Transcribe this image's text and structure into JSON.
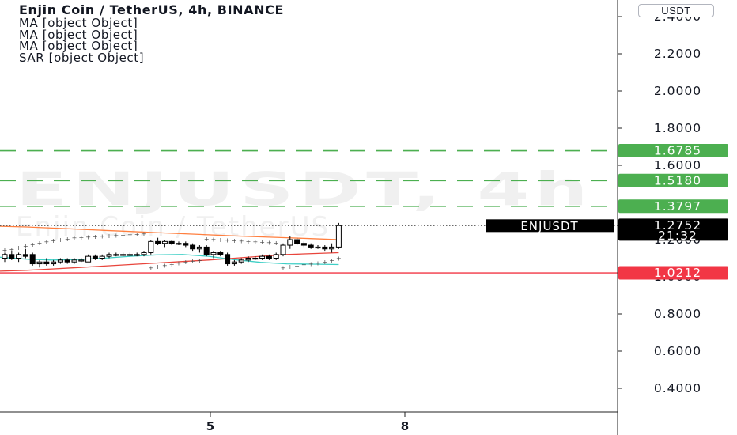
{
  "header": {
    "title": "Enjin Coin / TetherUS, 4h, BINANCE",
    "indicators": [
      "MA [object Object]",
      "MA [object Object]",
      "MA [object Object]",
      "SAR [object Object]"
    ],
    "currency": "USDT"
  },
  "watermark": {
    "symbol": "ENJUSDT, 4h",
    "description": "Enjin Coin / TetherUS"
  },
  "colors": {
    "up_candle": "#ffffff",
    "down_candle": "#000000",
    "ma_orange": "#ff7f3f",
    "ma_teal": "#3fcfc6",
    "ma_red": "#e8453c",
    "sar": "#444444",
    "green_line": "#4caf50",
    "red_line": "#f23645",
    "price_tag": "#000000"
  },
  "chart_data": {
    "type": "candlestick",
    "symbol": "ENJUSDT",
    "timeframe": "4h",
    "x_tick_labels": [
      "5",
      "8"
    ],
    "y_tick_labels": [
      "2.4000",
      "2.2000",
      "2.0000",
      "1.8000",
      "1.6000",
      "1.2000",
      "1.0000",
      "0.8000",
      "0.6000",
      "0.4000"
    ],
    "y_axis_values": [
      2.4,
      2.2,
      2.0,
      1.8,
      1.6,
      1.2,
      1.0,
      0.8,
      0.6,
      0.4
    ],
    "ylim": [
      0.3,
      2.45
    ],
    "grid": false,
    "horizontal_lines": [
      {
        "value": 1.6785,
        "label": "1.6785",
        "style": "dashed",
        "color": "#4caf50"
      },
      {
        "value": 1.518,
        "label": "1.5180",
        "style": "dashed",
        "color": "#4caf50"
      },
      {
        "value": 1.3797,
        "label": "1.3797",
        "style": "dashed",
        "color": "#4caf50"
      },
      {
        "value": 1.0212,
        "label": "1.0212",
        "style": "solid",
        "color": "#f23645"
      }
    ],
    "last_price": {
      "value": 1.2752,
      "label": "1.2752",
      "countdown": "21:32",
      "symbol": "ENJUSDT"
    },
    "candles": [
      {
        "o": 1.1,
        "h": 1.13,
        "l": 1.08,
        "c": 1.12
      },
      {
        "o": 1.12,
        "h": 1.14,
        "l": 1.09,
        "c": 1.1
      },
      {
        "o": 1.1,
        "h": 1.13,
        "l": 1.08,
        "c": 1.12
      },
      {
        "o": 1.12,
        "h": 1.15,
        "l": 1.1,
        "c": 1.11
      },
      {
        "o": 1.12,
        "h": 1.13,
        "l": 1.06,
        "c": 1.07
      },
      {
        "o": 1.07,
        "h": 1.09,
        "l": 1.05,
        "c": 1.08
      },
      {
        "o": 1.08,
        "h": 1.1,
        "l": 1.06,
        "c": 1.07
      },
      {
        "o": 1.07,
        "h": 1.09,
        "l": 1.06,
        "c": 1.08
      },
      {
        "o": 1.08,
        "h": 1.1,
        "l": 1.07,
        "c": 1.09
      },
      {
        "o": 1.09,
        "h": 1.1,
        "l": 1.07,
        "c": 1.08
      },
      {
        "o": 1.08,
        "h": 1.1,
        "l": 1.07,
        "c": 1.09
      },
      {
        "o": 1.09,
        "h": 1.1,
        "l": 1.08,
        "c": 1.09
      },
      {
        "o": 1.08,
        "h": 1.12,
        "l": 1.08,
        "c": 1.11
      },
      {
        "o": 1.11,
        "h": 1.12,
        "l": 1.09,
        "c": 1.1
      },
      {
        "o": 1.1,
        "h": 1.12,
        "l": 1.09,
        "c": 1.11
      },
      {
        "o": 1.11,
        "h": 1.13,
        "l": 1.1,
        "c": 1.12
      },
      {
        "o": 1.12,
        "h": 1.13,
        "l": 1.11,
        "c": 1.12
      },
      {
        "o": 1.12,
        "h": 1.13,
        "l": 1.11,
        "c": 1.12
      },
      {
        "o": 1.12,
        "h": 1.13,
        "l": 1.11,
        "c": 1.12
      },
      {
        "o": 1.12,
        "h": 1.13,
        "l": 1.11,
        "c": 1.12
      },
      {
        "o": 1.12,
        "h": 1.14,
        "l": 1.11,
        "c": 1.13
      },
      {
        "o": 1.13,
        "h": 1.2,
        "l": 1.12,
        "c": 1.19
      },
      {
        "o": 1.19,
        "h": 1.21,
        "l": 1.17,
        "c": 1.18
      },
      {
        "o": 1.18,
        "h": 1.2,
        "l": 1.16,
        "c": 1.19
      },
      {
        "o": 1.19,
        "h": 1.2,
        "l": 1.17,
        "c": 1.18
      },
      {
        "o": 1.18,
        "h": 1.19,
        "l": 1.17,
        "c": 1.18
      },
      {
        "o": 1.18,
        "h": 1.19,
        "l": 1.16,
        "c": 1.17
      },
      {
        "o": 1.17,
        "h": 1.18,
        "l": 1.14,
        "c": 1.15
      },
      {
        "o": 1.15,
        "h": 1.17,
        "l": 1.13,
        "c": 1.16
      },
      {
        "o": 1.16,
        "h": 1.17,
        "l": 1.11,
        "c": 1.12
      },
      {
        "o": 1.12,
        "h": 1.14,
        "l": 1.1,
        "c": 1.13
      },
      {
        "o": 1.13,
        "h": 1.14,
        "l": 1.11,
        "c": 1.12
      },
      {
        "o": 1.12,
        "h": 1.13,
        "l": 1.06,
        "c": 1.07
      },
      {
        "o": 1.07,
        "h": 1.09,
        "l": 1.06,
        "c": 1.08
      },
      {
        "o": 1.08,
        "h": 1.1,
        "l": 1.07,
        "c": 1.09
      },
      {
        "o": 1.09,
        "h": 1.11,
        "l": 1.08,
        "c": 1.1
      },
      {
        "o": 1.1,
        "h": 1.11,
        "l": 1.09,
        "c": 1.1
      },
      {
        "o": 1.1,
        "h": 1.12,
        "l": 1.09,
        "c": 1.11
      },
      {
        "o": 1.11,
        "h": 1.12,
        "l": 1.09,
        "c": 1.1
      },
      {
        "o": 1.1,
        "h": 1.13,
        "l": 1.09,
        "c": 1.12
      },
      {
        "o": 1.12,
        "h": 1.18,
        "l": 1.11,
        "c": 1.17
      },
      {
        "o": 1.17,
        "h": 1.22,
        "l": 1.15,
        "c": 1.2
      },
      {
        "o": 1.2,
        "h": 1.21,
        "l": 1.17,
        "c": 1.18
      },
      {
        "o": 1.18,
        "h": 1.19,
        "l": 1.16,
        "c": 1.17
      },
      {
        "o": 1.17,
        "h": 1.18,
        "l": 1.15,
        "c": 1.16
      },
      {
        "o": 1.16,
        "h": 1.17,
        "l": 1.15,
        "c": 1.16
      },
      {
        "o": 1.16,
        "h": 1.17,
        "l": 1.14,
        "c": 1.15
      },
      {
        "o": 1.15,
        "h": 1.18,
        "l": 1.13,
        "c": 1.16
      },
      {
        "o": 1.16,
        "h": 1.29,
        "l": 1.15,
        "c": 1.2752
      }
    ],
    "ma_series": [
      {
        "color": "#ff7f3f",
        "values": [
          1.272,
          1.268,
          1.262,
          1.256,
          1.25,
          1.244,
          1.238,
          1.232,
          1.226,
          1.22,
          1.215,
          1.21,
          1.205,
          1.2
        ]
      },
      {
        "color": "#3fcfc6",
        "values": [
          1.105,
          1.095,
          1.09,
          1.093,
          1.1,
          1.11,
          1.118,
          1.12,
          1.11,
          1.092,
          1.078,
          1.07,
          1.068,
          1.066
        ]
      },
      {
        "color": "#e8453c",
        "values": [
          1.03,
          1.035,
          1.042,
          1.05,
          1.058,
          1.066,
          1.074,
          1.082,
          1.09,
          1.1,
          1.11,
          1.12,
          1.125,
          1.13
        ]
      }
    ],
    "sar_values": [
      1.145,
      1.15,
      1.158,
      1.166,
      1.174,
      1.182,
      1.19,
      1.195,
      1.2,
      1.205,
      1.21,
      1.212,
      1.215,
      1.218,
      1.22,
      1.222,
      1.224,
      1.226,
      1.228,
      1.23,
      1.231,
      1.05,
      1.056,
      1.062,
      1.068,
      1.074,
      1.08,
      1.085,
      1.09,
      1.205,
      1.203,
      1.2,
      1.198,
      1.196,
      1.194,
      1.192,
      1.19,
      1.188,
      1.186,
      1.184,
      1.05,
      1.055,
      1.06,
      1.065,
      1.07,
      1.075,
      1.08,
      1.09,
      1.1
    ]
  }
}
